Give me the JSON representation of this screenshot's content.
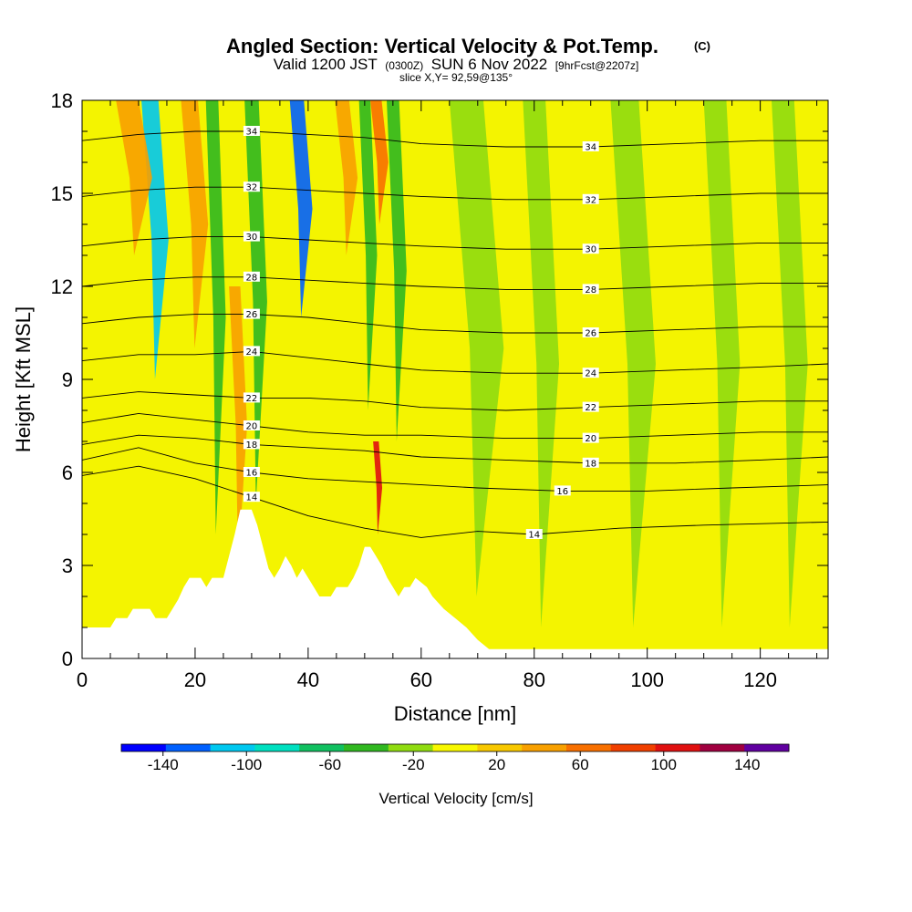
{
  "chart_data": {
    "type": "heatmap",
    "title": "Angled Section: Vertical Velocity & Pot.Temp.",
    "title_mark": "(C)",
    "subtitle_parts": [
      "Valid 1200 JST",
      "(0300Z)",
      "SUN 6 Nov 2022",
      "[9hrFcst@2207z]"
    ],
    "subtitle2": "slice X,Y= 92,59@135°",
    "xlabel": "Distance [nm]",
    "ylabel": "Height [Kft MSL]",
    "xlim": [
      0,
      132
    ],
    "ylim": [
      0,
      18
    ],
    "xticks": [
      0,
      20,
      40,
      60,
      80,
      100,
      120
    ],
    "yticks": [
      0,
      3,
      6,
      9,
      12,
      15,
      18
    ],
    "colorbar": {
      "label": "Vertical Velocity [cm/s]",
      "ticks": [
        -140,
        -100,
        -60,
        -20,
        20,
        60,
        100,
        140
      ],
      "min": -160,
      "max": 160,
      "colors": [
        "#0000ff",
        "#0060ff",
        "#00c8f0",
        "#00e0c0",
        "#10c060",
        "#30b820",
        "#90dc10",
        "#f8f800",
        "#f8c800",
        "#f8a000",
        "#f87000",
        "#f04000",
        "#e01010",
        "#a00040",
        "#6000a0"
      ]
    },
    "terrain_kft": [
      [
        0,
        1.0
      ],
      [
        5,
        1.0
      ],
      [
        6,
        1.3
      ],
      [
        8,
        1.3
      ],
      [
        9,
        1.6
      ],
      [
        12,
        1.6
      ],
      [
        13,
        1.3
      ],
      [
        15,
        1.3
      ],
      [
        16,
        1.6
      ],
      [
        17,
        1.9
      ],
      [
        18,
        2.3
      ],
      [
        19,
        2.6
      ],
      [
        21,
        2.6
      ],
      [
        22,
        2.3
      ],
      [
        23,
        2.6
      ],
      [
        25,
        2.6
      ],
      [
        26,
        3.3
      ],
      [
        27,
        4.0
      ],
      [
        28,
        4.8
      ],
      [
        30,
        4.8
      ],
      [
        31,
        4.3
      ],
      [
        32,
        3.6
      ],
      [
        33,
        2.9
      ],
      [
        34,
        2.6
      ],
      [
        35,
        2.9
      ],
      [
        36,
        3.3
      ],
      [
        37,
        3.0
      ],
      [
        38,
        2.6
      ],
      [
        39,
        2.9
      ],
      [
        40,
        2.6
      ],
      [
        41,
        2.3
      ],
      [
        42,
        2.0
      ],
      [
        44,
        2.0
      ],
      [
        45,
        2.3
      ],
      [
        47,
        2.3
      ],
      [
        48,
        2.6
      ],
      [
        49,
        3.0
      ],
      [
        50,
        3.6
      ],
      [
        51,
        3.6
      ],
      [
        52,
        3.3
      ],
      [
        53,
        3.0
      ],
      [
        54,
        2.6
      ],
      [
        55,
        2.3
      ],
      [
        56,
        2.0
      ],
      [
        57,
        2.3
      ],
      [
        58,
        2.3
      ],
      [
        59,
        2.6
      ],
      [
        61,
        2.3
      ],
      [
        62,
        2.0
      ],
      [
        64,
        1.6
      ],
      [
        66,
        1.3
      ],
      [
        68,
        1.0
      ],
      [
        70,
        0.6
      ],
      [
        72,
        0.3
      ],
      [
        132,
        0.3
      ]
    ],
    "velocity_bands": [
      {
        "x": 12,
        "w": 3.0,
        "v": -110,
        "top": 18,
        "bottom": 9
      },
      {
        "x": 23,
        "w": 2.2,
        "v": -50,
        "top": 18,
        "bottom": 4
      },
      {
        "x": 38,
        "w": 2.5,
        "v": -120,
        "top": 18,
        "bottom": 11
      },
      {
        "x": 30,
        "w": 2.5,
        "v": -40,
        "top": 18,
        "bottom": 5
      },
      {
        "x": 50,
        "w": 2.0,
        "v": -50,
        "top": 18,
        "bottom": 8
      },
      {
        "x": 55,
        "w": 2.2,
        "v": -45,
        "top": 18,
        "bottom": 7
      },
      {
        "x": 19,
        "w": 3.0,
        "v": 50,
        "top": 18,
        "bottom": 10
      },
      {
        "x": 8,
        "w": 4.0,
        "v": 45,
        "top": 18,
        "bottom": 13
      },
      {
        "x": 27,
        "w": 2.0,
        "v": 40,
        "top": 12,
        "bottom": 3
      },
      {
        "x": 46,
        "w": 2.5,
        "v": 35,
        "top": 18,
        "bottom": 13
      },
      {
        "x": 52,
        "w": 1.0,
        "v": 110,
        "top": 7,
        "bottom": 4
      },
      {
        "x": 52,
        "w": 2.0,
        "v": 60,
        "top": 18,
        "bottom": 14
      },
      {
        "x": 68,
        "w": 6.0,
        "v": -25,
        "top": 18,
        "bottom": 2
      },
      {
        "x": 80,
        "w": 4.0,
        "v": -25,
        "top": 18,
        "bottom": 1
      },
      {
        "x": 96,
        "w": 5.0,
        "v": -25,
        "top": 18,
        "bottom": 1
      },
      {
        "x": 112,
        "w": 4.0,
        "v": -25,
        "top": 18,
        "bottom": 1
      },
      {
        "x": 124,
        "w": 4.0,
        "v": -25,
        "top": 18,
        "bottom": 1
      }
    ],
    "theta_contours": [
      {
        "value": 14,
        "points": [
          [
            0,
            5.9
          ],
          [
            10,
            6.2
          ],
          [
            20,
            5.8
          ],
          [
            30,
            5.2
          ],
          [
            40,
            4.6
          ],
          [
            50,
            4.2
          ],
          [
            60,
            3.9
          ],
          [
            70,
            4.1
          ],
          [
            80,
            4.0
          ],
          [
            95,
            4.2
          ],
          [
            110,
            4.3
          ],
          [
            132,
            4.4
          ]
        ]
      },
      {
        "value": 16,
        "points": [
          [
            0,
            6.4
          ],
          [
            10,
            6.8
          ],
          [
            20,
            6.3
          ],
          [
            30,
            6.0
          ],
          [
            40,
            5.8
          ],
          [
            50,
            5.7
          ],
          [
            60,
            5.6
          ],
          [
            70,
            5.5
          ],
          [
            85,
            5.4
          ],
          [
            100,
            5.4
          ],
          [
            115,
            5.5
          ],
          [
            132,
            5.6
          ]
        ]
      },
      {
        "value": 18,
        "points": [
          [
            0,
            6.9
          ],
          [
            10,
            7.2
          ],
          [
            20,
            7.1
          ],
          [
            30,
            6.9
          ],
          [
            40,
            6.8
          ],
          [
            50,
            6.7
          ],
          [
            60,
            6.5
          ],
          [
            75,
            6.4
          ],
          [
            90,
            6.3
          ],
          [
            105,
            6.3
          ],
          [
            120,
            6.4
          ],
          [
            132,
            6.5
          ]
        ]
      },
      {
        "value": 20,
        "points": [
          [
            0,
            7.6
          ],
          [
            10,
            7.9
          ],
          [
            20,
            7.7
          ],
          [
            30,
            7.5
          ],
          [
            40,
            7.3
          ],
          [
            50,
            7.2
          ],
          [
            60,
            7.2
          ],
          [
            75,
            7.1
          ],
          [
            90,
            7.1
          ],
          [
            105,
            7.2
          ],
          [
            120,
            7.3
          ],
          [
            132,
            7.3
          ]
        ]
      },
      {
        "value": 22,
        "points": [
          [
            0,
            8.4
          ],
          [
            10,
            8.6
          ],
          [
            20,
            8.5
          ],
          [
            30,
            8.4
          ],
          [
            40,
            8.4
          ],
          [
            50,
            8.3
          ],
          [
            60,
            8.1
          ],
          [
            75,
            8.0
          ],
          [
            90,
            8.1
          ],
          [
            105,
            8.2
          ],
          [
            120,
            8.3
          ],
          [
            132,
            8.3
          ]
        ]
      },
      {
        "value": 24,
        "points": [
          [
            0,
            9.6
          ],
          [
            10,
            9.8
          ],
          [
            20,
            9.8
          ],
          [
            30,
            9.9
          ],
          [
            40,
            9.7
          ],
          [
            50,
            9.5
          ],
          [
            60,
            9.3
          ],
          [
            75,
            9.2
          ],
          [
            90,
            9.2
          ],
          [
            105,
            9.3
          ],
          [
            120,
            9.4
          ],
          [
            132,
            9.5
          ]
        ]
      },
      {
        "value": 26,
        "points": [
          [
            0,
            10.8
          ],
          [
            10,
            11.0
          ],
          [
            20,
            11.1
          ],
          [
            30,
            11.1
          ],
          [
            40,
            11.0
          ],
          [
            50,
            10.8
          ],
          [
            60,
            10.6
          ],
          [
            75,
            10.5
          ],
          [
            90,
            10.5
          ],
          [
            105,
            10.6
          ],
          [
            120,
            10.7
          ],
          [
            132,
            10.7
          ]
        ]
      },
      {
        "value": 28,
        "points": [
          [
            0,
            12.0
          ],
          [
            10,
            12.2
          ],
          [
            20,
            12.3
          ],
          [
            30,
            12.3
          ],
          [
            40,
            12.2
          ],
          [
            50,
            12.1
          ],
          [
            60,
            12.0
          ],
          [
            75,
            11.9
          ],
          [
            90,
            11.9
          ],
          [
            105,
            12.0
          ],
          [
            120,
            12.1
          ],
          [
            132,
            12.1
          ]
        ]
      },
      {
        "value": 30,
        "points": [
          [
            0,
            13.3
          ],
          [
            10,
            13.5
          ],
          [
            20,
            13.6
          ],
          [
            30,
            13.6
          ],
          [
            40,
            13.5
          ],
          [
            50,
            13.4
          ],
          [
            60,
            13.3
          ],
          [
            75,
            13.2
          ],
          [
            90,
            13.2
          ],
          [
            105,
            13.3
          ],
          [
            120,
            13.4
          ],
          [
            132,
            13.4
          ]
        ]
      },
      {
        "value": 32,
        "points": [
          [
            0,
            14.9
          ],
          [
            10,
            15.1
          ],
          [
            20,
            15.2
          ],
          [
            30,
            15.2
          ],
          [
            40,
            15.1
          ],
          [
            50,
            15.0
          ],
          [
            60,
            14.9
          ],
          [
            75,
            14.8
          ],
          [
            90,
            14.8
          ],
          [
            105,
            14.9
          ],
          [
            120,
            15.0
          ],
          [
            132,
            15.0
          ]
        ]
      },
      {
        "value": 34,
        "points": [
          [
            0,
            16.7
          ],
          [
            10,
            16.9
          ],
          [
            20,
            17.0
          ],
          [
            30,
            17.0
          ],
          [
            40,
            16.9
          ],
          [
            50,
            16.8
          ],
          [
            60,
            16.6
          ],
          [
            75,
            16.5
          ],
          [
            90,
            16.5
          ],
          [
            105,
            16.6
          ],
          [
            120,
            16.7
          ],
          [
            132,
            16.7
          ]
        ]
      }
    ]
  }
}
